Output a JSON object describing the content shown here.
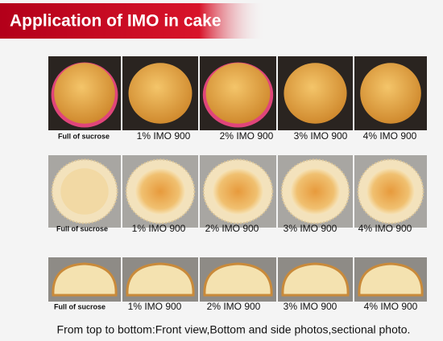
{
  "header": {
    "title": "Application of IMO in cake"
  },
  "rows": [
    {
      "labels": [
        "Full of sucrose",
        "1% IMO 900",
        "2% IMO 900",
        "3% IMO 900",
        "4% IMO 900"
      ]
    },
    {
      "labels": [
        "Full of sucrose",
        "1% IMO 900",
        "2% IMO 900",
        "3% IMO 900",
        "4% IMO 900"
      ]
    },
    {
      "labels": [
        "Full of sucrose",
        "1% IMO 900",
        "2% IMO 900",
        "3% IMO 900",
        "4% IMO 900"
      ]
    }
  ],
  "caption": "From top to bottom:Front view,Bottom and side photos,sectional photo."
}
